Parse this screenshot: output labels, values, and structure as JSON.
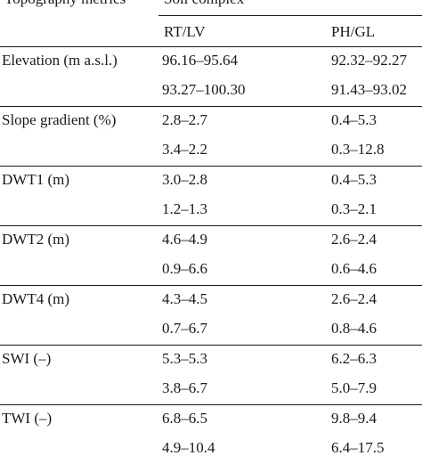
{
  "table": {
    "header_metric": "Topography metrics",
    "header_group": "Soil complex",
    "columns": [
      "RT/LV",
      "PH/GL"
    ],
    "metrics": [
      {
        "label": "Elevation (m a.s.l.)",
        "rows": [
          [
            "96.16–95.64",
            "92.32–92.27"
          ],
          [
            "93.27–100.30",
            "91.43–93.02"
          ]
        ]
      },
      {
        "label": "Slope gradient (%)",
        "rows": [
          [
            "2.8–2.7",
            "0.4–5.3"
          ],
          [
            "3.4–2.2",
            "0.3–12.8"
          ]
        ]
      },
      {
        "label": "DWT1 (m)",
        "rows": [
          [
            "3.0–2.8",
            "0.4–5.3"
          ],
          [
            "1.2–1.3",
            "0.3–2.1"
          ]
        ]
      },
      {
        "label": "DWT2 (m)",
        "rows": [
          [
            "4.6–4.9",
            "2.6–2.4"
          ],
          [
            "0.9–6.6",
            "0.6–4.6"
          ]
        ]
      },
      {
        "label": "DWT4 (m)",
        "rows": [
          [
            "4.3–4.5",
            "2.6–2.4"
          ],
          [
            "0.7–6.7",
            "0.8–4.6"
          ]
        ]
      },
      {
        "label": "SWI (–)",
        "rows": [
          [
            "5.3–5.3",
            "6.2–6.3"
          ],
          [
            "3.8–6.7",
            "5.0–7.9"
          ]
        ]
      },
      {
        "label": "TWI  (–)",
        "rows": [
          [
            "6.8–6.5",
            "9.8–9.4"
          ],
          [
            "4.9–10.4",
            "6.4–17.5"
          ]
        ]
      }
    ]
  }
}
